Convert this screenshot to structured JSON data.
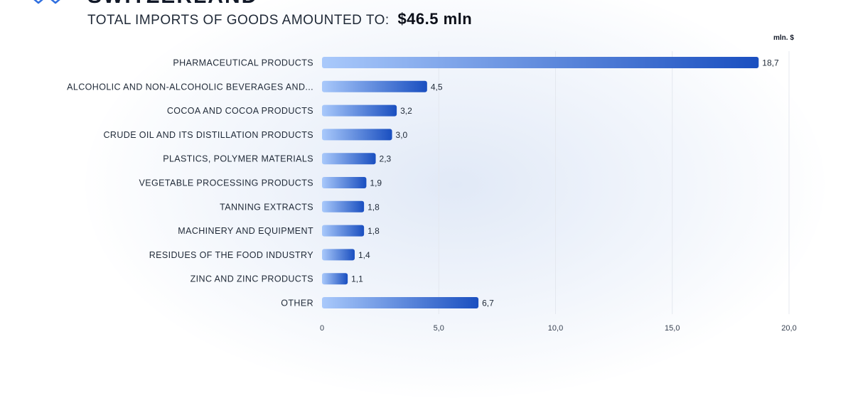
{
  "header": {
    "title_cut": "SWITZERLAND",
    "subtitle_prefix": "TOTAL IMPORTS OF GOODS AMOUNTED TO:",
    "subtitle_amount": "$46.5  mln"
  },
  "colors": {
    "bar_start": "#a9c9fb",
    "bar_end": "#1a4fc0",
    "grid": "#e4e8ef",
    "text": "#1f2937"
  },
  "chart_data": {
    "type": "bar",
    "orientation": "horizontal",
    "unit_label": "mln. $",
    "categories": [
      "PHARMACEUTICAL PRODUCTS",
      "ALCOHOLIC AND NON-ALCOHOLIC BEVERAGES AND...",
      "COCOA AND COCOA PRODUCTS",
      "CRUDE OIL AND ITS DISTILLATION PRODUCTS",
      "PLASTICS, POLYMER MATERIALS",
      "VEGETABLE PROCESSING PRODUCTS",
      "TANNING EXTRACTS",
      "MACHINERY AND EQUIPMENT",
      "RESIDUES OF THE FOOD INDUSTRY",
      "ZINC AND ZINC PRODUCTS",
      "OTHER"
    ],
    "values": [
      18.7,
      4.5,
      3.2,
      3.0,
      2.3,
      1.9,
      1.8,
      1.8,
      1.4,
      1.1,
      6.7
    ],
    "value_labels": [
      "18,7",
      "4,5",
      "3,2",
      "3,0",
      "2,3",
      "1,9",
      "1,8",
      "1,8",
      "1,4",
      "1,1",
      "6,7"
    ],
    "xlim": [
      0,
      20
    ],
    "xticks": [
      0,
      5,
      10,
      15,
      20
    ],
    "xtick_labels": [
      "0",
      "5,0",
      "10,0",
      "15,0",
      "20,0"
    ],
    "grid": true
  }
}
